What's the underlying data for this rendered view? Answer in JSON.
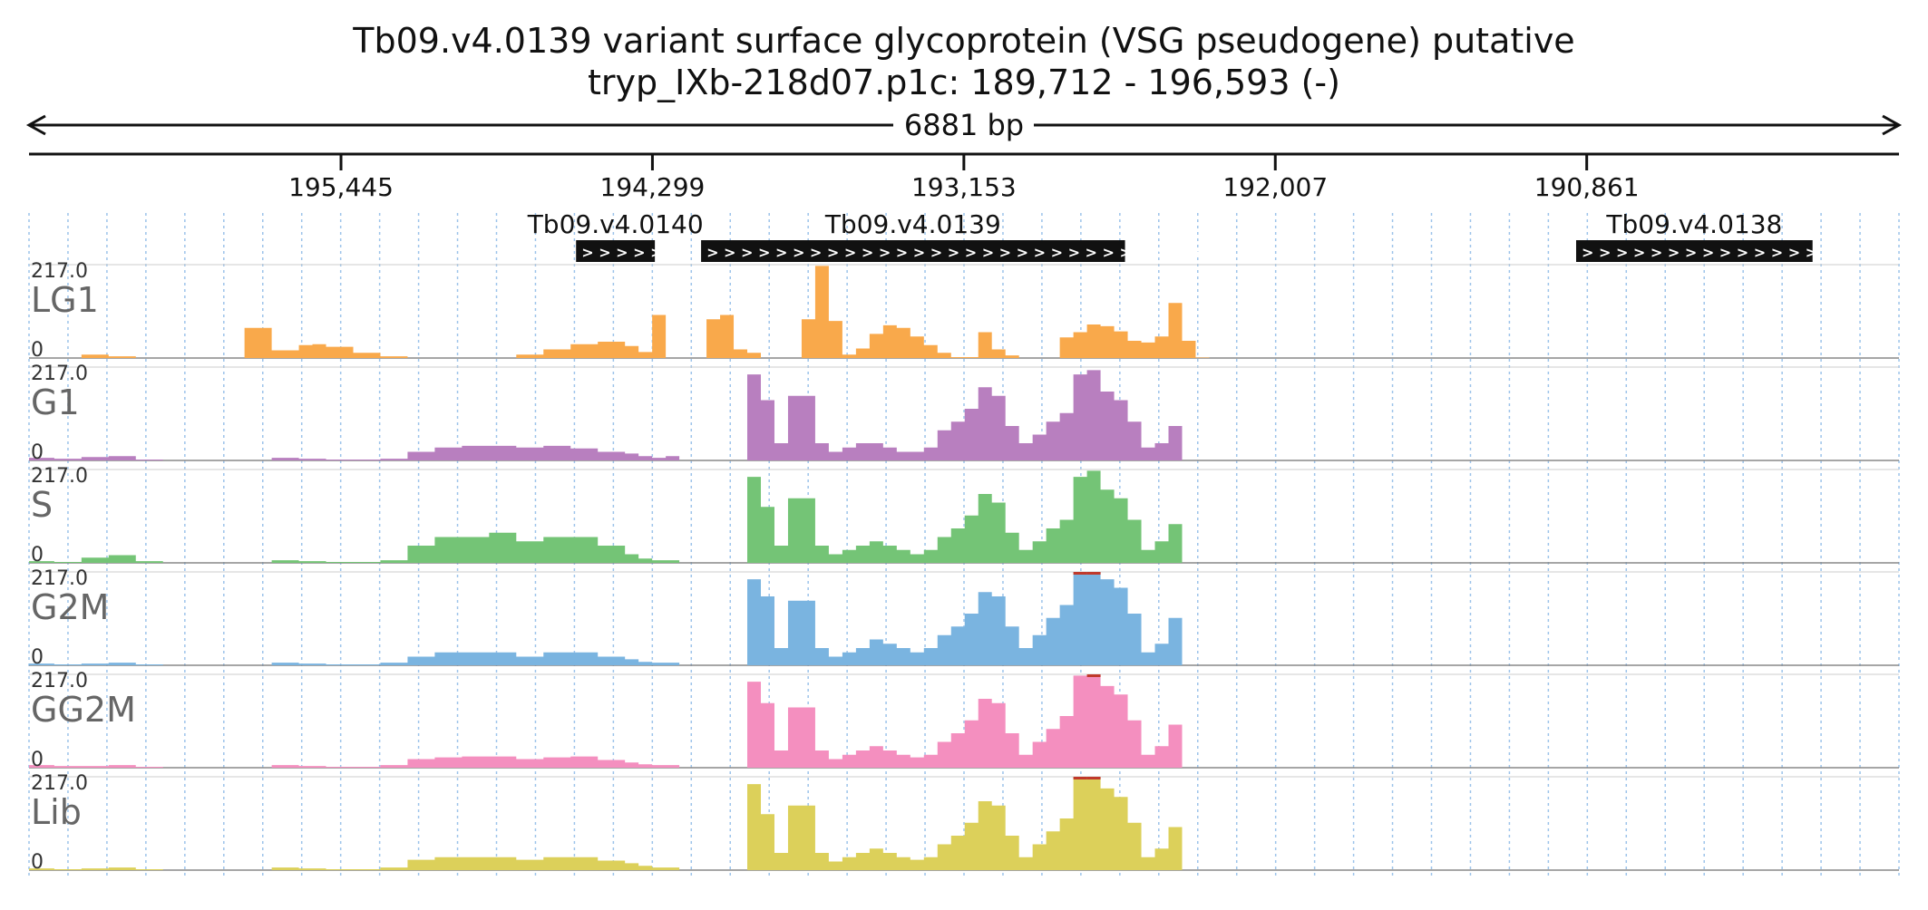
{
  "chart_data": {
    "type": "area",
    "title": "Tb09.v4.0139  variant surface glycoprotein (VSG  pseudogene)  putative",
    "subtitle": "tryp_IXb-218d07.p1c: 189,712 - 196,593 (-)",
    "span_label": "6881 bp",
    "xlim": [
      196593,
      189712
    ],
    "ylim": [
      0,
      217.0
    ],
    "ymax_label": "217.0",
    "ymin_label": "0",
    "grid": true,
    "x_ticks": [
      {
        "value": 195445,
        "label": "195,445"
      },
      {
        "value": 194299,
        "label": "194,299"
      },
      {
        "value": 193153,
        "label": "193,153"
      },
      {
        "value": 192007,
        "label": "192,007"
      },
      {
        "value": 190861,
        "label": "190,861"
      }
    ],
    "genes": [
      {
        "name": "Tb09.v4.0140",
        "start": 194580,
        "end": 194290,
        "strand": "+"
      },
      {
        "name": "Tb09.v4.0139",
        "start": 194120,
        "end": 192560,
        "strand": "+"
      },
      {
        "name": "Tb09.v4.0138",
        "start": 190900,
        "end": 190030,
        "strand": "+"
      }
    ],
    "x": [
      196593,
      196500,
      196400,
      196300,
      196200,
      196100,
      196000,
      195900,
      195800,
      195700,
      195600,
      195550,
      195500,
      195400,
      195300,
      195200,
      195100,
      195000,
      194900,
      194800,
      194700,
      194600,
      194500,
      194400,
      194350,
      194300,
      194250,
      194200,
      194150,
      194100,
      194050,
      194000,
      193950,
      193900,
      193850,
      193800,
      193750,
      193700,
      193650,
      193600,
      193550,
      193500,
      193450,
      193400,
      193350,
      193300,
      193250,
      193200,
      193150,
      193100,
      193050,
      193000,
      192950,
      192900,
      192850,
      192800,
      192750,
      192700,
      192650,
      192600,
      192550,
      192500,
      192450,
      192400,
      192350,
      192300,
      192250,
      192200,
      192150,
      192100,
      192050,
      192000,
      191950,
      191900,
      191850,
      191800,
      191750,
      191700,
      191650,
      191600,
      191550,
      191500,
      191450,
      191400,
      191350,
      191300,
      191250,
      191200,
      191150,
      191100,
      191050,
      191000,
      190950,
      190900,
      190850,
      190800,
      190750,
      190700,
      190650,
      190600,
      190550,
      190500,
      190450,
      190400,
      190350,
      190300,
      190250,
      190200,
      190150,
      190100,
      190050,
      190000,
      189950,
      189900,
      189850,
      189800,
      189750,
      189712
    ],
    "series": [
      {
        "name": "LG1",
        "color": "#f9a94b",
        "values": [
          0,
          0,
          8,
          4,
          0,
          0,
          0,
          0,
          70,
          18,
          30,
          32,
          26,
          12,
          4,
          0,
          0,
          0,
          0,
          8,
          20,
          32,
          38,
          28,
          14,
          100,
          0,
          0,
          0,
          90,
          100,
          20,
          12,
          0,
          0,
          0,
          90,
          214,
          86,
          8,
          22,
          56,
          76,
          70,
          50,
          30,
          12,
          2,
          2,
          60,
          20,
          6,
          0,
          0,
          0,
          48,
          60,
          78,
          74,
          62,
          40,
          36,
          50,
          128,
          40,
          1,
          0,
          0,
          0,
          0,
          0,
          0,
          0,
          0,
          0,
          0,
          0,
          0,
          0,
          0,
          0,
          0,
          0,
          0,
          0,
          0,
          0,
          0,
          0,
          0,
          0,
          0,
          0,
          0,
          0,
          0,
          0,
          0,
          0,
          0,
          0,
          0,
          0,
          0,
          0,
          0,
          0,
          0,
          0,
          0,
          0,
          0,
          0,
          0,
          0,
          0,
          0,
          0
        ]
      },
      {
        "name": "G1",
        "color": "#b87fbf",
        "values": [
          6,
          4,
          8,
          10,
          2,
          0,
          0,
          0,
          0,
          6,
          4,
          4,
          2,
          2,
          4,
          20,
          30,
          34,
          34,
          30,
          34,
          28,
          20,
          16,
          10,
          6,
          10,
          0,
          0,
          0,
          0,
          0,
          200,
          140,
          40,
          150,
          150,
          40,
          20,
          30,
          40,
          40,
          30,
          20,
          20,
          30,
          70,
          90,
          120,
          170,
          150,
          80,
          40,
          60,
          90,
          110,
          200,
          210,
          160,
          140,
          90,
          30,
          40,
          80,
          0,
          0,
          0,
          0,
          0,
          0,
          0,
          0,
          0,
          0,
          0,
          0,
          0,
          0,
          0,
          0,
          0,
          0,
          0,
          0,
          0,
          0,
          0,
          0,
          0,
          0,
          0,
          0,
          0,
          0,
          0,
          0,
          0,
          0,
          0,
          0,
          0,
          0,
          0,
          0,
          0,
          0,
          0,
          0,
          0,
          0,
          0,
          0,
          0,
          0,
          0,
          0,
          0,
          0
        ]
      },
      {
        "name": "S",
        "color": "#74c476",
        "values": [
          4,
          2,
          12,
          18,
          4,
          0,
          0,
          0,
          0,
          6,
          4,
          4,
          2,
          2,
          6,
          40,
          60,
          60,
          70,
          50,
          60,
          60,
          40,
          20,
          10,
          6,
          6,
          0,
          0,
          0,
          0,
          0,
          200,
          130,
          40,
          150,
          150,
          40,
          20,
          30,
          40,
          50,
          40,
          30,
          20,
          30,
          60,
          80,
          110,
          160,
          140,
          70,
          30,
          50,
          80,
          100,
          200,
          214,
          170,
          150,
          100,
          30,
          50,
          90,
          0,
          0,
          0,
          0,
          0,
          0,
          0,
          0,
          0,
          0,
          0,
          0,
          0,
          0,
          0,
          0,
          0,
          0,
          0,
          0,
          0,
          0,
          0,
          0,
          0,
          0,
          0,
          0,
          0,
          0,
          0,
          0,
          0,
          0,
          0,
          0,
          0,
          0,
          0,
          0,
          0,
          0,
          0,
          0,
          0,
          0,
          0,
          0,
          0,
          0,
          0,
          0,
          0,
          0
        ]
      },
      {
        "name": "G2M",
        "color": "#7ab4e0",
        "values": [
          4,
          2,
          4,
          6,
          2,
          0,
          0,
          0,
          0,
          6,
          4,
          4,
          2,
          2,
          6,
          20,
          30,
          30,
          30,
          20,
          30,
          30,
          20,
          14,
          8,
          6,
          6,
          0,
          0,
          0,
          0,
          0,
          200,
          160,
          40,
          150,
          150,
          40,
          20,
          30,
          40,
          60,
          50,
          40,
          30,
          40,
          70,
          90,
          120,
          170,
          160,
          90,
          40,
          70,
          110,
          140,
          217,
          217,
          200,
          180,
          120,
          30,
          50,
          110,
          0,
          0,
          0,
          0,
          0,
          0,
          0,
          0,
          0,
          0,
          0,
          0,
          0,
          0,
          0,
          0,
          0,
          0,
          0,
          0,
          0,
          0,
          0,
          0,
          0,
          0,
          0,
          0,
          0,
          0,
          0,
          0,
          0,
          0,
          0,
          0,
          0,
          0,
          0,
          0,
          0,
          0,
          0,
          0,
          0,
          0,
          0,
          0,
          0,
          0,
          0,
          0,
          0,
          0
        ]
      },
      {
        "name": "GG2M",
        "color": "#f48fbf",
        "values": [
          6,
          4,
          4,
          6,
          2,
          0,
          0,
          0,
          0,
          6,
          4,
          4,
          2,
          2,
          6,
          20,
          24,
          26,
          26,
          20,
          24,
          26,
          18,
          12,
          8,
          6,
          6,
          0,
          0,
          0,
          0,
          0,
          200,
          150,
          40,
          140,
          140,
          40,
          20,
          30,
          40,
          50,
          40,
          30,
          24,
          30,
          60,
          80,
          110,
          160,
          150,
          80,
          30,
          60,
          90,
          120,
          214,
          217,
          190,
          170,
          110,
          30,
          50,
          100,
          0,
          0,
          0,
          0,
          0,
          0,
          0,
          0,
          0,
          0,
          0,
          0,
          0,
          0,
          0,
          0,
          0,
          0,
          0,
          0,
          0,
          0,
          0,
          0,
          0,
          0,
          0,
          0,
          0,
          0,
          0,
          0,
          0,
          0,
          0,
          0,
          0,
          0,
          0,
          0,
          0,
          0,
          0,
          0,
          0,
          0,
          0,
          0,
          0,
          0,
          0,
          0,
          0,
          0
        ]
      },
      {
        "name": "Lib",
        "color": "#dcd05a",
        "values": [
          4,
          2,
          4,
          6,
          2,
          0,
          0,
          0,
          0,
          6,
          4,
          4,
          2,
          2,
          6,
          24,
          30,
          30,
          30,
          24,
          30,
          30,
          22,
          16,
          10,
          6,
          6,
          0,
          0,
          0,
          0,
          0,
          200,
          130,
          40,
          150,
          150,
          40,
          20,
          30,
          40,
          50,
          40,
          30,
          24,
          30,
          60,
          80,
          110,
          160,
          150,
          80,
          30,
          60,
          90,
          120,
          217,
          217,
          190,
          170,
          110,
          30,
          50,
          100,
          0,
          0,
          0,
          0,
          0,
          0,
          0,
          0,
          0,
          0,
          0,
          0,
          0,
          0,
          0,
          0,
          0,
          0,
          0,
          0,
          0,
          0,
          0,
          0,
          0,
          0,
          0,
          0,
          0,
          0,
          0,
          0,
          0,
          0,
          0,
          0,
          0,
          0,
          0,
          0,
          0,
          0,
          0,
          0,
          0,
          0,
          0,
          0,
          0,
          0,
          0,
          0,
          0,
          0
        ]
      }
    ]
  }
}
